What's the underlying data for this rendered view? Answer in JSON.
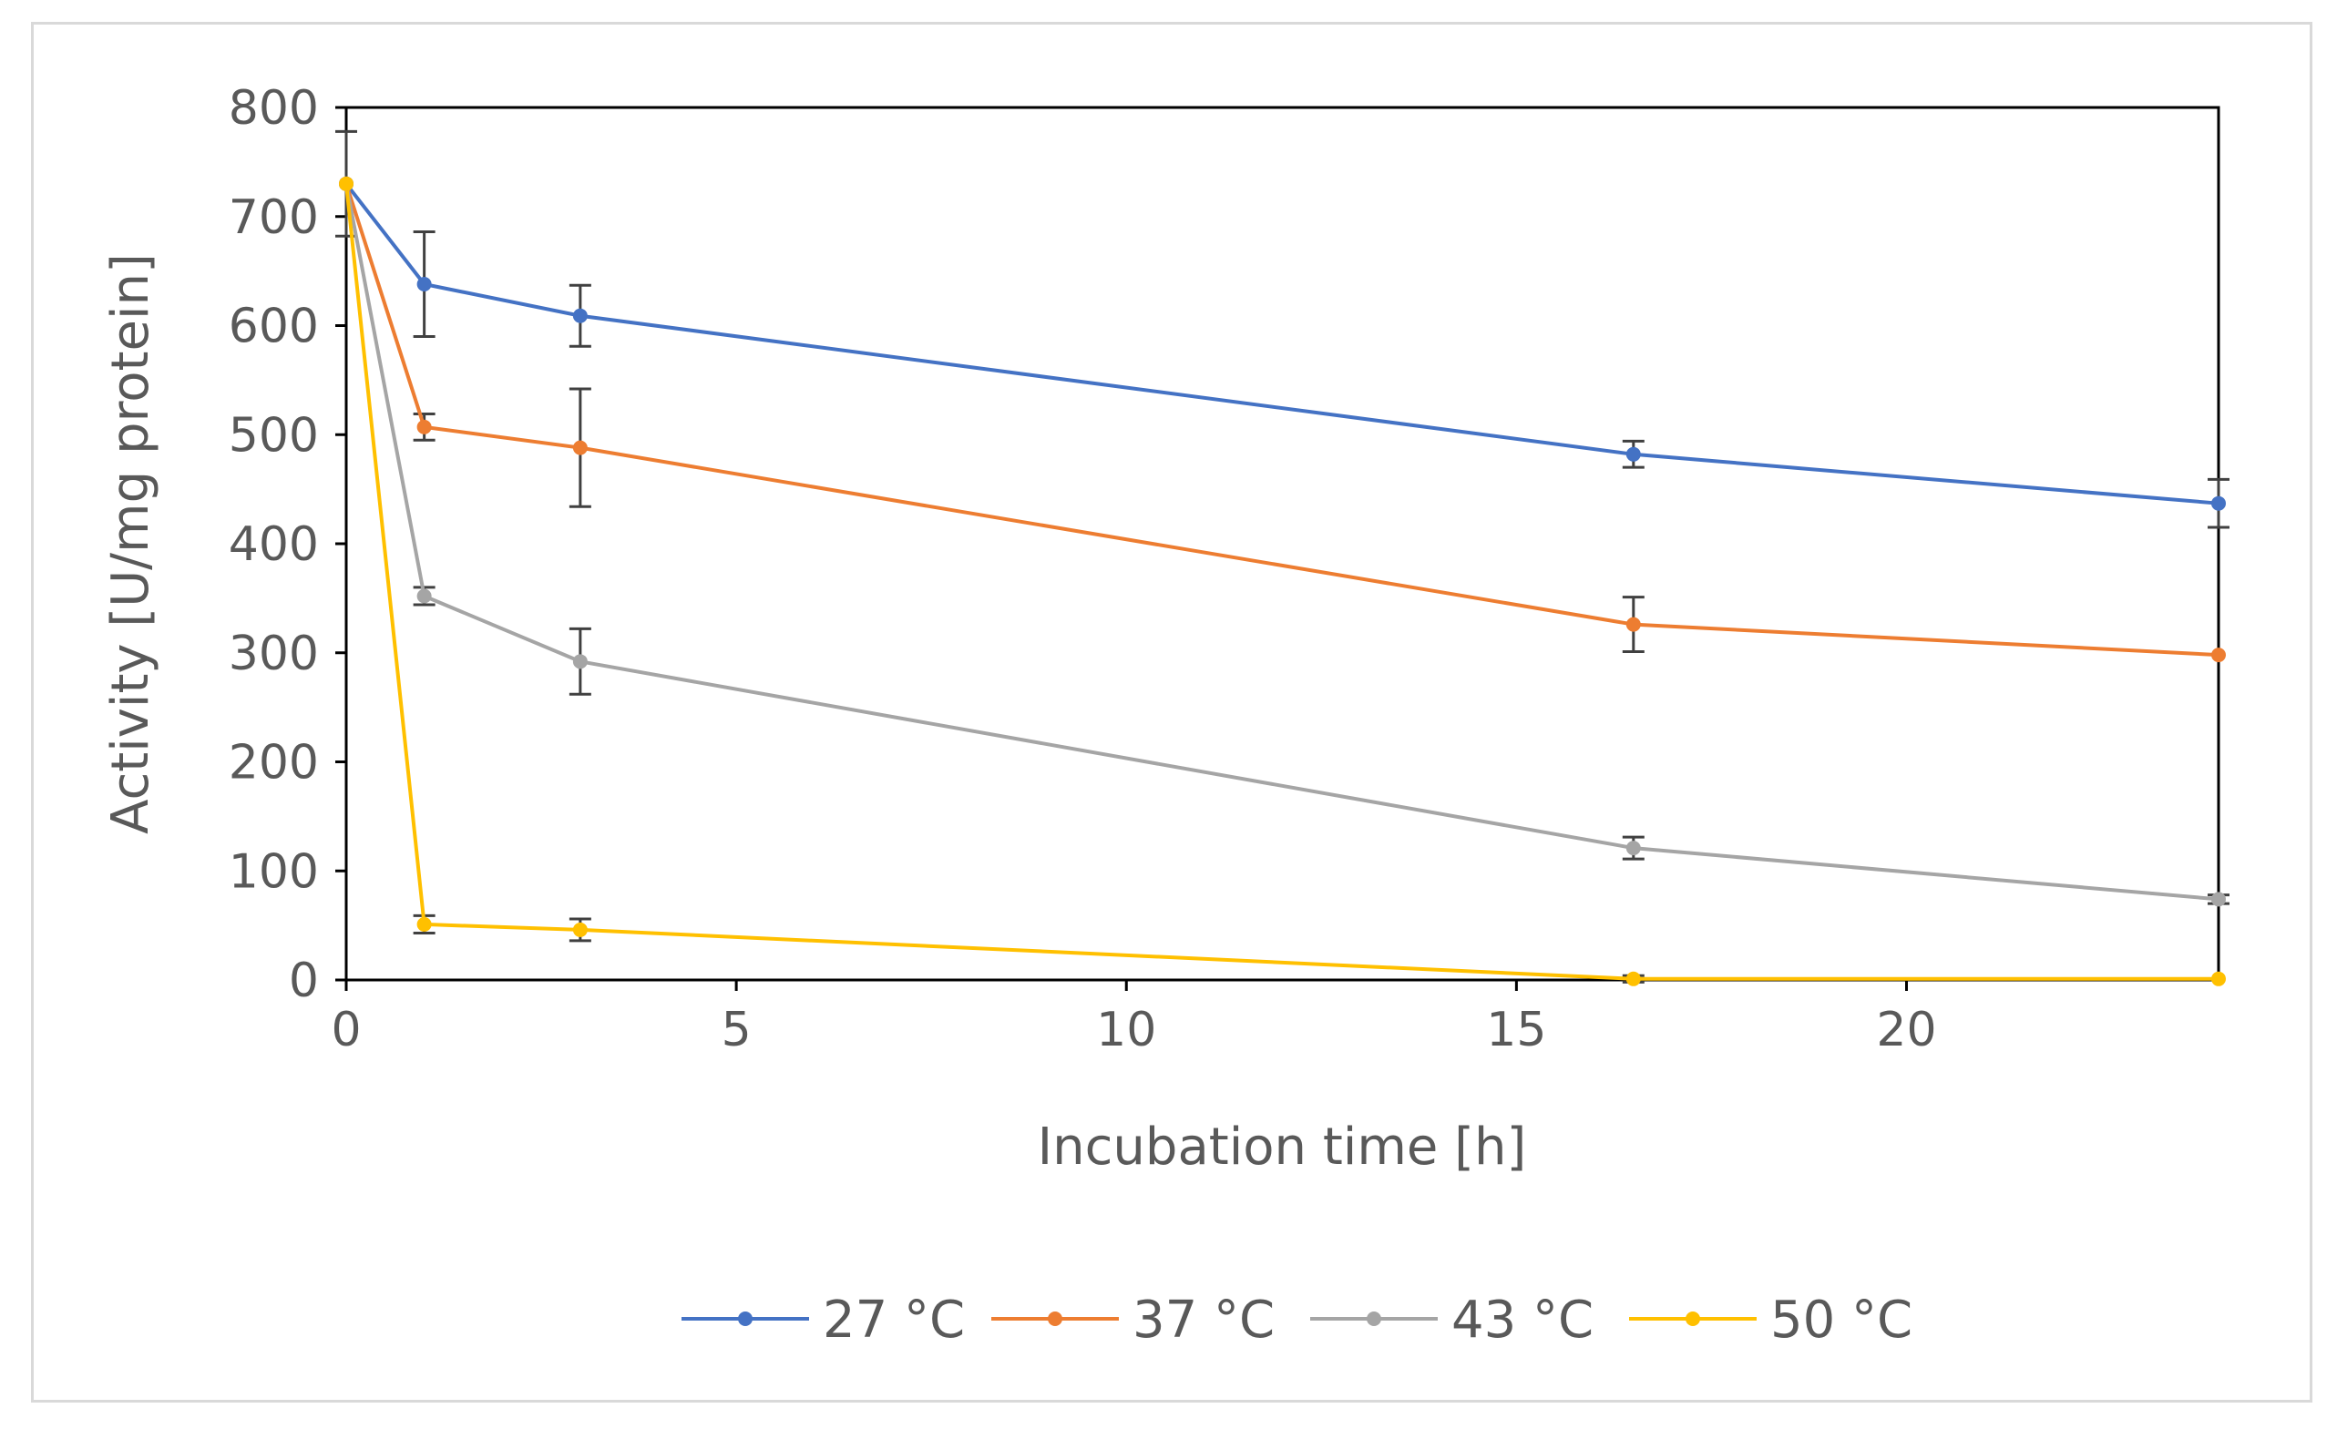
{
  "chart_data": {
    "type": "line",
    "title": "",
    "xlabel": "Incubation time [h]",
    "ylabel": "Activity [U/mg protein]",
    "xlim": [
      0,
      24
    ],
    "ylim": [
      0,
      800
    ],
    "x_ticks": [
      0,
      5,
      10,
      15,
      20
    ],
    "y_ticks": [
      0,
      100,
      200,
      300,
      400,
      500,
      600,
      700,
      800
    ],
    "x_tick_labels": [
      "0",
      "5",
      "10",
      "15",
      "20"
    ],
    "y_tick_labels": [
      "0",
      "100",
      "200",
      "300",
      "400",
      "500",
      "600",
      "700",
      "800"
    ],
    "grid": false,
    "legend_position": "bottom",
    "x": [
      0,
      1,
      3,
      16.5,
      24
    ],
    "series": [
      {
        "name": "27 °C",
        "color": "#4472c4",
        "values": [
          730,
          638,
          609,
          482,
          437
        ],
        "errors": [
          48,
          48,
          28,
          12,
          22
        ]
      },
      {
        "name": "37 °C",
        "color": "#ed7d31",
        "values": [
          730,
          507,
          488,
          326,
          298
        ],
        "errors": [
          0,
          12,
          54,
          25,
          0
        ]
      },
      {
        "name": "43 °C",
        "color": "#a5a5a5",
        "values": [
          730,
          352,
          292,
          121,
          74
        ],
        "errors": [
          0,
          8,
          30,
          10,
          4
        ]
      },
      {
        "name": "50 °C",
        "color": "#ffc000",
        "values": [
          730,
          51,
          46,
          1,
          1
        ],
        "errors": [
          0,
          8,
          10,
          3,
          0
        ]
      }
    ]
  }
}
